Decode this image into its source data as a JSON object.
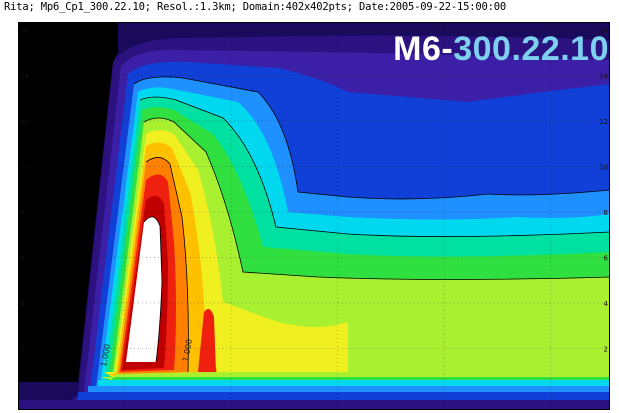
{
  "header": {
    "text": "Rita; Mp6_Cp1_300.22.10; Resol.:1.3km; Domain:402x402pts; Date:2005-09-22-15:00:00"
  },
  "overlay": {
    "prefix": "M6-",
    "code": "300.22.10"
  },
  "chart_data": {
    "type": "heatmap",
    "y_ticks": [
      "2",
      "4",
      "6",
      "8",
      "10",
      "12",
      "14",
      "16"
    ],
    "ylim": [
      0,
      16
    ],
    "contour_labels": [
      "1.000",
      "1.000"
    ],
    "colors": {
      "outer": "#1a0a5c",
      "ring1": "#2c1280",
      "ring2": "#3b1fa6",
      "blue": "#1040d8",
      "sky": "#1e90ff",
      "cyan": "#00d8f0",
      "teal": "#00e0a0",
      "green": "#30e040",
      "lime": "#a8f030",
      "yellow": "#f0f020",
      "gold": "#ffc000",
      "orange": "#ff8000",
      "red": "#f02010",
      "darkred": "#c00000",
      "core": "#ffffff",
      "black": "#000000"
    }
  }
}
